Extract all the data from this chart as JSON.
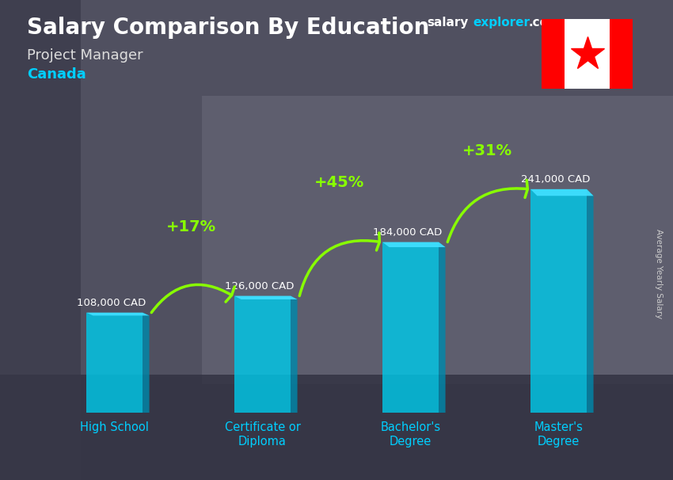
{
  "title_main": "Salary Comparison By Education",
  "title_sub": "Project Manager",
  "title_country": "Canada",
  "ylabel": "Average Yearly Salary",
  "categories": [
    "High School",
    "Certificate or\nDiploma",
    "Bachelor's\nDegree",
    "Master's\nDegree"
  ],
  "values": [
    108000,
    126000,
    184000,
    241000
  ],
  "value_labels": [
    "108,000 CAD",
    "126,000 CAD",
    "184,000 CAD",
    "241,000 CAD"
  ],
  "pct_changes": [
    "+17%",
    "+45%",
    "+31%"
  ],
  "bar_color_main": "#00c8e8",
  "bar_color_light": "#40dfff",
  "bar_color_dark": "#0088aa",
  "bar_alpha": 0.82,
  "title_color": "#ffffff",
  "subtitle_color": "#dddddd",
  "country_color": "#00cfff",
  "value_color": "#ffffff",
  "pct_color": "#88ff00",
  "arrow_color": "#88ff00",
  "xlabel_color": "#00cfff",
  "bg_color": "#5a5a6a",
  "ylim": [
    0,
    300000
  ],
  "bar_width": 0.38,
  "side_ratio": 0.12
}
